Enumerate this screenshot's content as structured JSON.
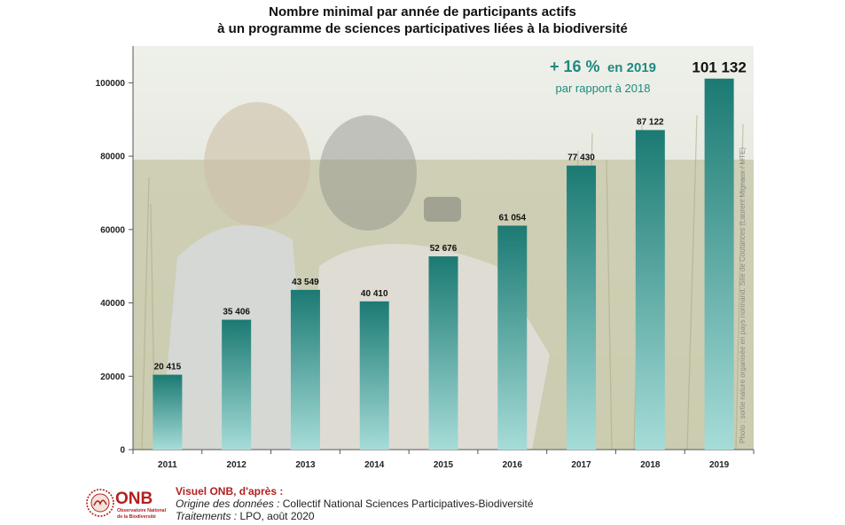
{
  "title": {
    "line1": "Nombre minimal par année de participants actifs",
    "line2": "à un programme de sciences participatives liées à la biodiversité"
  },
  "highlight": {
    "pct": "+ 16 %",
    "year_text": "en 2019",
    "sub": "par rapport  à 2018",
    "color": "#1e8a80"
  },
  "photo_credit": "Photo : sortie nature organisée en pays normand. Site de Coutances (Laurent Mignaux / MTE)",
  "colors": {
    "bar_top": "#1b7a73",
    "bar_bottom": "#a6dcd8",
    "accent": "#1e8a80",
    "onb_red": "#b32020",
    "photo_sky": "#e3e6df",
    "photo_grass": "#b9bb98"
  },
  "chart_data": {
    "type": "bar",
    "categories": [
      "2011",
      "2012",
      "2013",
      "2014",
      "2015",
      "2016",
      "2017",
      "2018",
      "2019"
    ],
    "values": [
      20415,
      35406,
      43549,
      40410,
      52676,
      61054,
      77430,
      87122,
      101132
    ],
    "value_labels": [
      "20 415",
      "35 406",
      "43 549",
      "40 410",
      "52 676",
      "61 054",
      "77 430",
      "87 122",
      "101 132"
    ],
    "ylim": [
      0,
      110000
    ],
    "yticks": [
      0,
      20000,
      40000,
      60000,
      80000,
      100000
    ],
    "grid": false,
    "xlabel": "",
    "ylabel": ""
  },
  "footer": {
    "logo_text": "ONB",
    "logo_sub1": "Observatoire National",
    "logo_sub2": "de la Biodiversité",
    "credit": "Visuel ONB, d'après :",
    "origin_label": "Origine des données :",
    "origin_value": " Collectif National Sciences Participatives-Biodiversité",
    "treat_label": "Traitements :",
    "treat_value": " LPO, août 2020"
  }
}
